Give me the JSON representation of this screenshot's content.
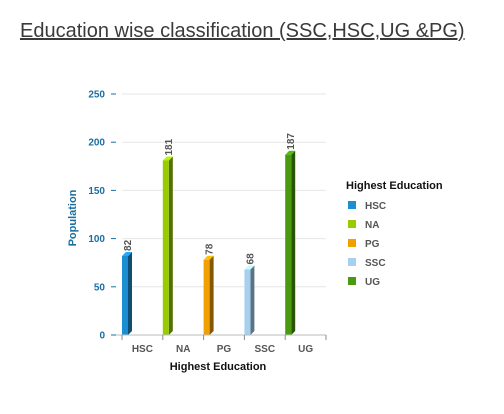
{
  "chart_data": {
    "type": "bar",
    "title": "Education wise classification (SSC,HSC,UG &PG)",
    "xlabel": "Highest Education",
    "ylabel": "Population",
    "categories": [
      "HSC",
      "NA",
      "PG",
      "SSC",
      "UG"
    ],
    "series": [
      {
        "name": "HSC",
        "values": [
          82,
          null,
          null,
          null,
          null
        ]
      },
      {
        "name": "NA",
        "values": [
          null,
          181,
          null,
          null,
          null
        ]
      },
      {
        "name": "PG",
        "values": [
          null,
          null,
          78,
          null,
          null
        ]
      },
      {
        "name": "SSC",
        "values": [
          null,
          null,
          null,
          68,
          null
        ]
      },
      {
        "name": "UG",
        "values": [
          null,
          null,
          null,
          null,
          187
        ]
      }
    ],
    "ylim": [
      0,
      250
    ],
    "yticks": [
      0,
      50,
      100,
      150,
      200,
      250
    ],
    "grid": true,
    "legend": {
      "title": "Highest Education",
      "position": "right"
    },
    "colors": {
      "HSC": "#1b8fd2",
      "NA": "#99cc00",
      "PG": "#f0a000",
      "SSC": "#a6d1ee",
      "UG": "#4a9a10"
    },
    "axis_color": "#1a6fa0"
  }
}
